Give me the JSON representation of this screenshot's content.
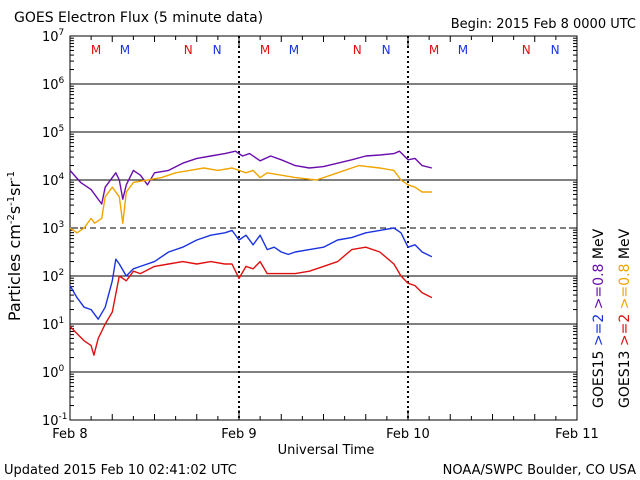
{
  "chart_data": {
    "type": "line",
    "title": "GOES Electron Flux (5 minute data)",
    "begin_label": "Begin: 2015 Feb 8 0000 UTC",
    "xlabel": "Universal Time",
    "ylabel_parts": {
      "base": "Particles cm",
      "sup1": "-2",
      "mid1": "s",
      "sup2": "-1",
      "mid2": "sr",
      "sup3": "-1"
    },
    "updated": "Updated 2015 Feb 10 02:41:02 UTC",
    "source": "NOAA/SWPC Boulder, CO USA",
    "x_range_hours": [
      0,
      72
    ],
    "x_ticks": [
      {
        "hour": 0,
        "label": "Feb 8"
      },
      {
        "hour": 24,
        "label": "Feb 9"
      },
      {
        "hour": 48,
        "label": "Feb 10"
      },
      {
        "hour": 72,
        "label": "Feb 11"
      }
    ],
    "y_range_log10": [
      -1,
      7
    ],
    "y_ticks": [
      {
        "exp": 7,
        "base": "10",
        "sup": "7"
      },
      {
        "exp": 6,
        "base": "10",
        "sup": "6"
      },
      {
        "exp": 5,
        "base": "10",
        "sup": "5"
      },
      {
        "exp": 4,
        "base": "10",
        "sup": "4"
      },
      {
        "exp": 3,
        "base": "10",
        "sup": "3"
      },
      {
        "exp": 2,
        "base": "10",
        "sup": "2"
      },
      {
        "exp": 1,
        "base": "10",
        "sup": "1"
      },
      {
        "exp": 0,
        "base": "10",
        "sup": "0"
      },
      {
        "exp": -1,
        "base": "10",
        "sup": "-1"
      }
    ],
    "threshold_log10": 3,
    "day_boundary_hours": [
      24,
      48
    ],
    "markers": [
      {
        "hour": 3.7,
        "letter": "M",
        "satellite": "GOES13"
      },
      {
        "hour": 7.8,
        "letter": "M",
        "satellite": "GOES15"
      },
      {
        "hour": 16.8,
        "letter": "N",
        "satellite": "GOES13"
      },
      {
        "hour": 20.9,
        "letter": "N",
        "satellite": "GOES15"
      },
      {
        "hour": 27.7,
        "letter": "M",
        "satellite": "GOES13"
      },
      {
        "hour": 31.8,
        "letter": "M",
        "satellite": "GOES15"
      },
      {
        "hour": 40.8,
        "letter": "N",
        "satellite": "GOES13"
      },
      {
        "hour": 44.9,
        "letter": "N",
        "satellite": "GOES15"
      },
      {
        "hour": 51.7,
        "letter": "M",
        "satellite": "GOES13"
      },
      {
        "hour": 55.8,
        "letter": "M",
        "satellite": "GOES15"
      },
      {
        "hour": 64.8,
        "letter": "N",
        "satellite": "GOES13"
      },
      {
        "hour": 68.9,
        "letter": "N",
        "satellite": "GOES15"
      }
    ],
    "legend": [
      {
        "text": "GOES15",
        "color": "#000000"
      },
      {
        "text": "GOES13",
        "color": "#000000"
      },
      {
        "text": ">=2",
        "color": "#1a33e0"
      },
      {
        "text": ">=2",
        "color": "#e01010"
      },
      {
        "text": ">=0.8",
        "color": "#6a0dad"
      },
      {
        "text": ">=0.8",
        "color": "#f0a500"
      },
      {
        "text": "MeV",
        "color": "#000000"
      },
      {
        "text": "MeV",
        "color": "#000000"
      }
    ],
    "colors": {
      "GOES13": "#e01010",
      "GOES15": "#1a33e0"
    },
    "series": [
      {
        "name": "GOES15 >=0.8 MeV",
        "color": "#6a0dad",
        "points": [
          [
            0,
            4.2
          ],
          [
            1.5,
            3.95
          ],
          [
            3,
            3.8
          ],
          [
            4.5,
            3.5
          ],
          [
            5,
            3.85
          ],
          [
            6.5,
            4.15
          ],
          [
            7,
            4.0
          ],
          [
            7.5,
            3.6
          ],
          [
            8,
            3.9
          ],
          [
            9,
            4.2
          ],
          [
            10,
            4.1
          ],
          [
            11,
            3.9
          ],
          [
            12,
            4.15
          ],
          [
            14,
            4.2
          ],
          [
            16,
            4.35
          ],
          [
            18,
            4.45
          ],
          [
            20,
            4.5
          ],
          [
            22,
            4.55
          ],
          [
            23.5,
            4.6
          ],
          [
            24.5,
            4.5
          ],
          [
            25.5,
            4.55
          ],
          [
            27,
            4.4
          ],
          [
            28.5,
            4.5
          ],
          [
            30,
            4.42
          ],
          [
            32,
            4.3
          ],
          [
            34,
            4.25
          ],
          [
            36,
            4.28
          ],
          [
            38,
            4.35
          ],
          [
            40,
            4.42
          ],
          [
            42,
            4.5
          ],
          [
            44,
            4.52
          ],
          [
            46,
            4.55
          ],
          [
            46.8,
            4.6
          ],
          [
            48,
            4.42
          ],
          [
            49,
            4.45
          ],
          [
            50,
            4.3
          ],
          [
            51.4,
            4.25
          ]
        ]
      },
      {
        "name": "GOES13 >=0.8 MeV",
        "color": "#f0a500",
        "points": [
          [
            0,
            3.0
          ],
          [
            1,
            2.9
          ],
          [
            2,
            3.0
          ],
          [
            3,
            3.2
          ],
          [
            3.5,
            3.1
          ],
          [
            4.5,
            3.2
          ],
          [
            5,
            3.65
          ],
          [
            6,
            3.85
          ],
          [
            7,
            3.65
          ],
          [
            7.5,
            3.1
          ],
          [
            8,
            3.75
          ],
          [
            9,
            3.95
          ],
          [
            11,
            4.0
          ],
          [
            13,
            4.05
          ],
          [
            15,
            4.15
          ],
          [
            17,
            4.2
          ],
          [
            19,
            4.25
          ],
          [
            21,
            4.2
          ],
          [
            23,
            4.25
          ],
          [
            24,
            4.2
          ],
          [
            25,
            4.15
          ],
          [
            26,
            4.2
          ],
          [
            27,
            4.05
          ],
          [
            28,
            4.15
          ],
          [
            30,
            4.1
          ],
          [
            32,
            4.05
          ],
          [
            35,
            4.0
          ],
          [
            38,
            4.15
          ],
          [
            41,
            4.3
          ],
          [
            44,
            4.25
          ],
          [
            46,
            4.2
          ],
          [
            47,
            4.0
          ],
          [
            48,
            3.9
          ],
          [
            49,
            3.85
          ],
          [
            50,
            3.75
          ],
          [
            51.4,
            3.75
          ]
        ]
      },
      {
        "name": "GOES15 >=2 MeV",
        "color": "#1a33e0",
        "points": [
          [
            0,
            1.8
          ],
          [
            1,
            1.55
          ],
          [
            2,
            1.35
          ],
          [
            3,
            1.3
          ],
          [
            4,
            1.1
          ],
          [
            5,
            1.35
          ],
          [
            6,
            1.9
          ],
          [
            6.5,
            2.35
          ],
          [
            7,
            2.25
          ],
          [
            8,
            2.0
          ],
          [
            9,
            2.15
          ],
          [
            10,
            2.2
          ],
          [
            12,
            2.3
          ],
          [
            14,
            2.5
          ],
          [
            16,
            2.6
          ],
          [
            18,
            2.75
          ],
          [
            20,
            2.85
          ],
          [
            22,
            2.9
          ],
          [
            23,
            2.95
          ],
          [
            24,
            2.75
          ],
          [
            25,
            2.85
          ],
          [
            26,
            2.65
          ],
          [
            27,
            2.85
          ],
          [
            28,
            2.55
          ],
          [
            29,
            2.6
          ],
          [
            30,
            2.5
          ],
          [
            31,
            2.45
          ],
          [
            32,
            2.5
          ],
          [
            34,
            2.55
          ],
          [
            36,
            2.6
          ],
          [
            38,
            2.75
          ],
          [
            40,
            2.8
          ],
          [
            42,
            2.9
          ],
          [
            44,
            2.95
          ],
          [
            46,
            3.0
          ],
          [
            47,
            2.9
          ],
          [
            48,
            2.6
          ],
          [
            49,
            2.65
          ],
          [
            50,
            2.5
          ],
          [
            51.4,
            2.4
          ]
        ]
      },
      {
        "name": "GOES13 >=2 MeV",
        "color": "#e01010",
        "points": [
          [
            0,
            0.95
          ],
          [
            1,
            0.8
          ],
          [
            2,
            0.65
          ],
          [
            3,
            0.55
          ],
          [
            3.4,
            0.35
          ],
          [
            4,
            0.7
          ],
          [
            5,
            1.0
          ],
          [
            6,
            1.25
          ],
          [
            7,
            2.0
          ],
          [
            8,
            1.9
          ],
          [
            9,
            2.1
          ],
          [
            10,
            2.05
          ],
          [
            12,
            2.2
          ],
          [
            14,
            2.25
          ],
          [
            16,
            2.3
          ],
          [
            18,
            2.25
          ],
          [
            20,
            2.3
          ],
          [
            22,
            2.25
          ],
          [
            23,
            2.25
          ],
          [
            23.5,
            2.1
          ],
          [
            24,
            1.95
          ],
          [
            25,
            2.2
          ],
          [
            26,
            2.15
          ],
          [
            27,
            2.3
          ],
          [
            28,
            2.05
          ],
          [
            30,
            2.05
          ],
          [
            32,
            2.05
          ],
          [
            34,
            2.1
          ],
          [
            36,
            2.2
          ],
          [
            38,
            2.3
          ],
          [
            40,
            2.55
          ],
          [
            42,
            2.6
          ],
          [
            44,
            2.5
          ],
          [
            46,
            2.25
          ],
          [
            47,
            2.0
          ],
          [
            48,
            1.85
          ],
          [
            49,
            1.8
          ],
          [
            50,
            1.65
          ],
          [
            51.4,
            1.55
          ]
        ]
      }
    ]
  }
}
